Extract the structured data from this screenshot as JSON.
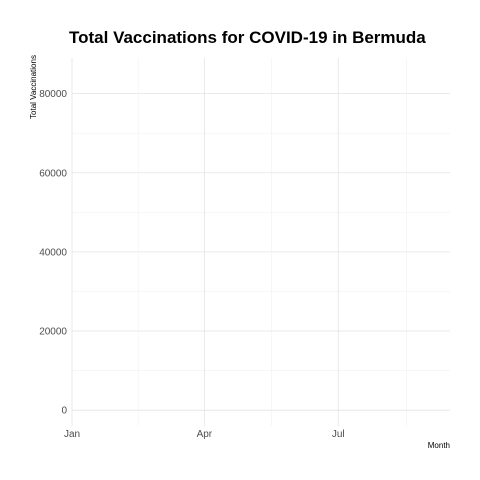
{
  "chart_data": {
    "type": "line",
    "title": "Total Vaccinations for COVID-19 in Bermuda",
    "xlabel": "Month",
    "ylabel": "Total Vaccinations",
    "x_ticks": [
      "Jan",
      "Apr",
      "Jul"
    ],
    "y_ticks": [
      "0",
      "20000",
      "40000",
      "60000",
      "80000"
    ],
    "ylim": [
      -4000,
      89000
    ],
    "xlim": [
      "2021-01-01",
      "2021-09-15"
    ],
    "grid": true,
    "series_color": "#000000",
    "series": []
  }
}
